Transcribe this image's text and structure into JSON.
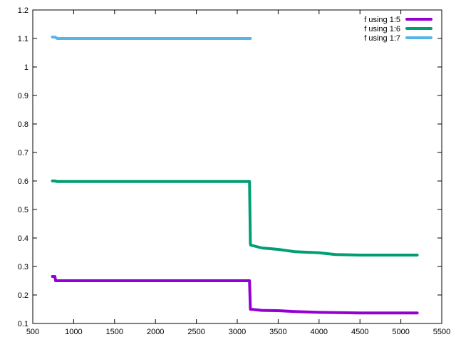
{
  "chart_data": {
    "type": "line",
    "title": "",
    "xlabel": "",
    "ylabel": "",
    "xlim": [
      500,
      5500
    ],
    "ylim": [
      0.1,
      1.2
    ],
    "xticks": [
      "500",
      "1000",
      "1500",
      "2000",
      "2500",
      "3000",
      "3500",
      "4000",
      "4500",
      "5000",
      "5500"
    ],
    "yticks": [
      "0.1",
      "0.2",
      "0.3",
      "0.4",
      "0.5",
      "0.6",
      "0.7",
      "0.8",
      "0.9",
      "1",
      "1.1",
      "1.2"
    ],
    "grid": false,
    "legend_position": "top-right",
    "series": [
      {
        "name": "f using 1:5",
        "color": "#9400d3",
        "x": [
          740,
          770,
          780,
          3150,
          3160,
          3165,
          3300,
          3500,
          3700,
          4000,
          4500,
          5200
        ],
        "y": [
          0.265,
          0.265,
          0.25,
          0.25,
          0.15,
          0.15,
          0.146,
          0.145,
          0.142,
          0.139,
          0.137,
          0.137
        ]
      },
      {
        "name": "f using 1:6",
        "color": "#009e73",
        "x": [
          740,
          770,
          800,
          3150,
          3160,
          3165,
          3300,
          3500,
          3700,
          4000,
          4200,
          4500,
          5200
        ],
        "y": [
          0.6,
          0.6,
          0.598,
          0.598,
          0.38,
          0.375,
          0.365,
          0.36,
          0.352,
          0.348,
          0.342,
          0.34,
          0.34
        ]
      },
      {
        "name": "f using 1:7",
        "color": "#56b4e9",
        "x": [
          740,
          770,
          800,
          3160
        ],
        "y": [
          1.105,
          1.105,
          1.1,
          1.1
        ]
      }
    ]
  }
}
